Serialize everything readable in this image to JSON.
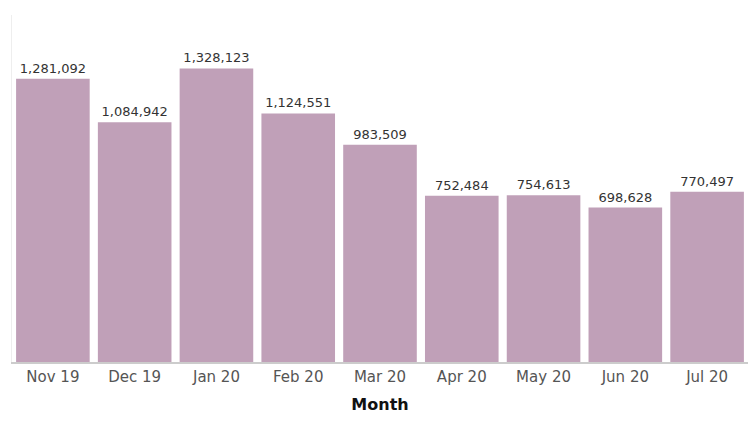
{
  "chart_data": {
    "type": "bar",
    "x_label": "Month",
    "categories": [
      "Nov 19",
      "Dec 19",
      "Jan 20",
      "Feb 20",
      "Mar 20",
      "Apr 20",
      "May 20",
      "Jun 20",
      "Jul 20"
    ],
    "values": [
      1281092,
      1084942,
      1328123,
      1124551,
      983509,
      752484,
      754613,
      698628,
      770497
    ],
    "value_labels": [
      "1,281,092",
      "1,084,942",
      "1,328,123",
      "1,124,551",
      "983,509",
      "752,484",
      "754,613",
      "698,628",
      "770,497"
    ],
    "color": "#c0a0b8",
    "ylim": [
      0,
      1570000
    ],
    "grid": false,
    "data_labels": true,
    "tick_labels": "x"
  }
}
